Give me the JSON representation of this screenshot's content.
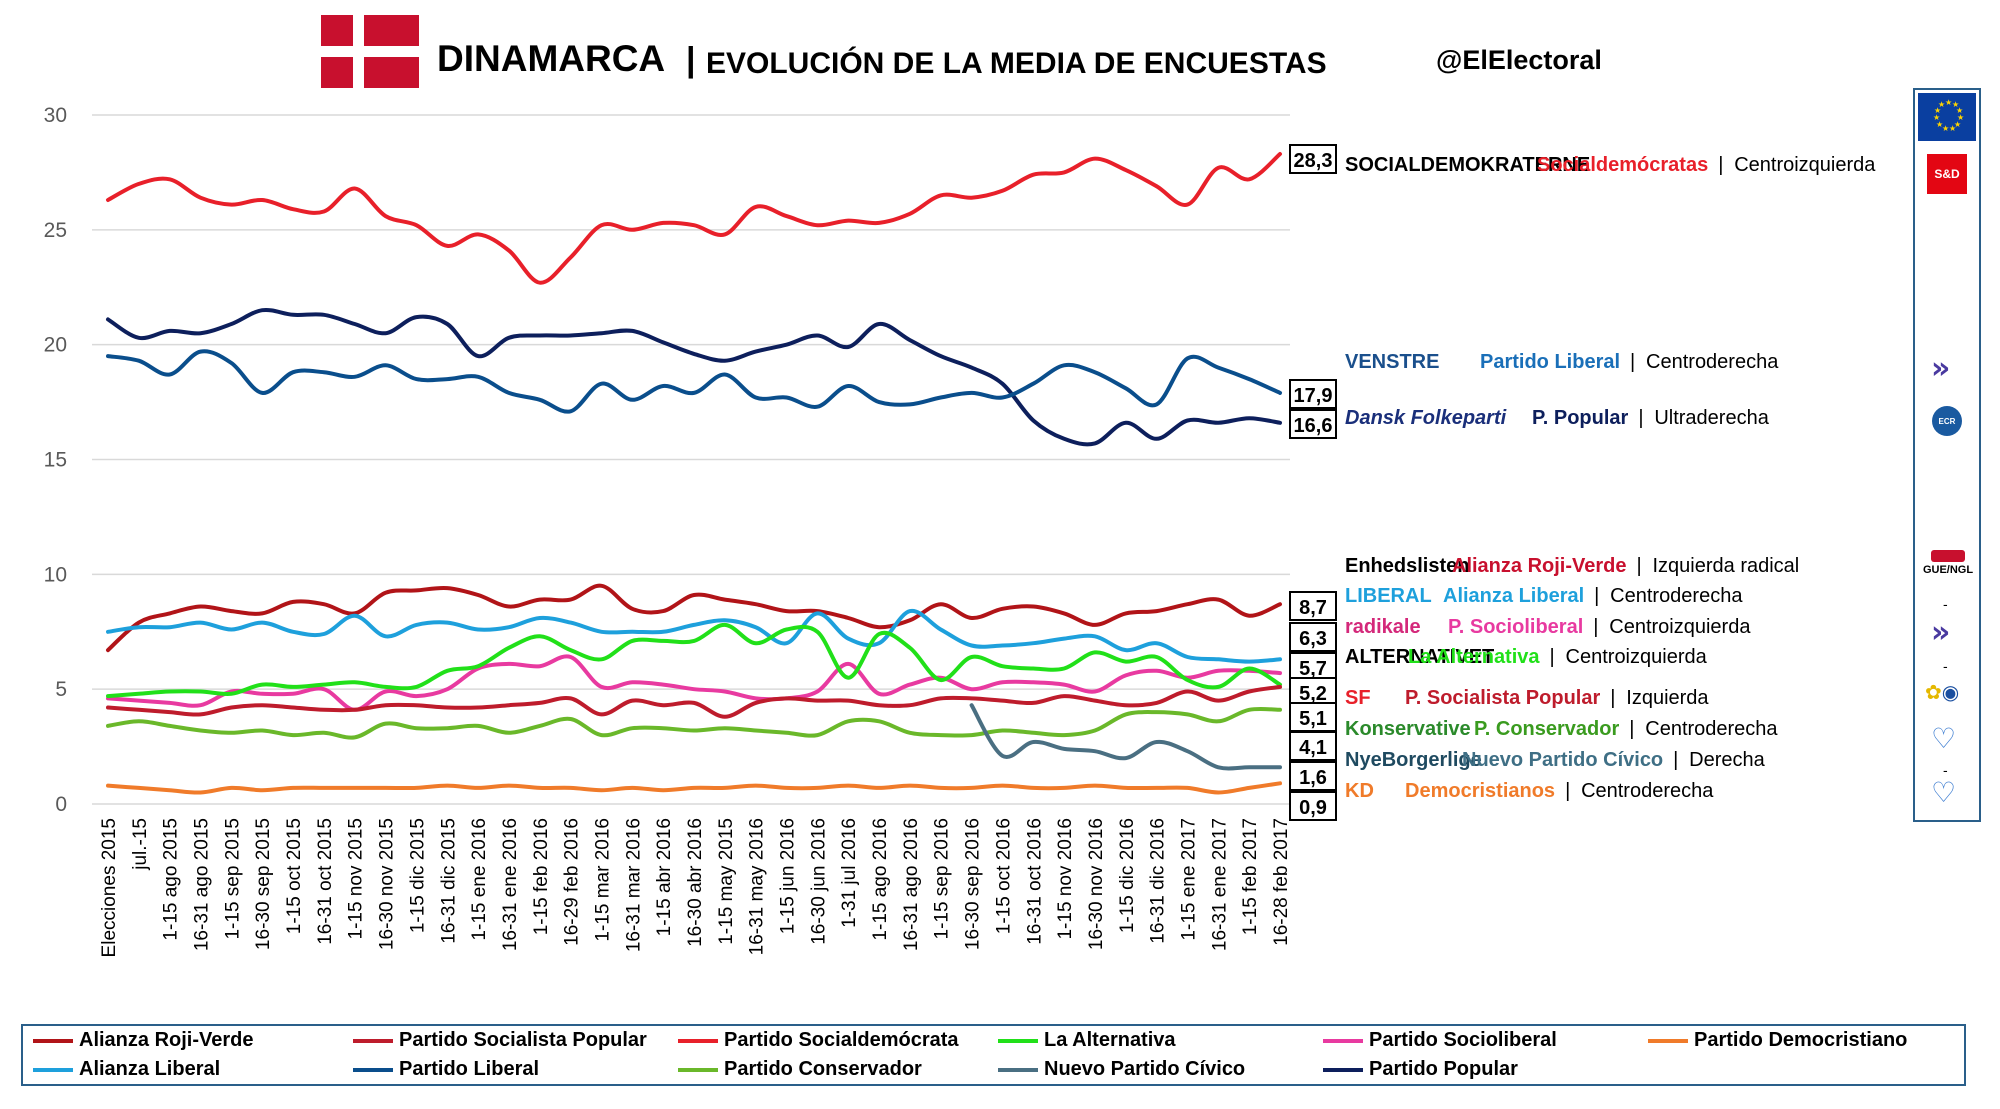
{
  "header": {
    "flag_colors": {
      "red": "#c8102e",
      "white": "#ffffff"
    },
    "title_bold": "DINAMARCA",
    "title_separator": "|",
    "title_rest": "EVOLUCIÓN DE LA MEDIA DE ENCUESTAS",
    "handle": "@ElElectoral"
  },
  "chart_data": {
    "type": "line",
    "ylim": [
      0,
      30
    ],
    "yticks": [
      "30",
      "25",
      "20",
      "15",
      "10",
      "5",
      "0"
    ],
    "ytick_values": [
      30,
      25,
      20,
      15,
      10,
      5,
      0
    ],
    "grid": "horizontal",
    "categories": [
      "Elecciones 2015",
      "jul.-15",
      "1-15 ago 2015",
      "16-31 ago 2015",
      "1-15 sep 2015",
      "16-30 sep 2015",
      "1-15 oct 2015",
      "16-31 oct 2015",
      "1-15 nov 2015",
      "16-30 nov 2015",
      "1-15 dic 2015",
      "16-31 dic 2015",
      "1-15 ene 2016",
      "16-31 ene 2016",
      "1-15 feb 2016",
      "16-29 feb 2016",
      "1-15 mar 2016",
      "16-31 mar 2016",
      "1-15 abr 2016",
      "16-30 abr 2016",
      "1-15 may 2015",
      "16-31 may 2016",
      "1-15 jun 2016",
      "16-30 jun 2016",
      "1-31 jul 2016",
      "1-15 ago 2016",
      "16-31 ago 2016",
      "1-15 sep 2016",
      "16-30 sep 2016",
      "1-15 oct 2016",
      "16-31 oct 2016",
      "1-15 nov 2016",
      "16-30 nov 2016",
      "1-15 dic 2016",
      "16-31 dic 2016",
      "1-15 ene 2017",
      "16-31 ene 2017",
      "1-15 feb 2017",
      "16-28 feb 2017"
    ],
    "series": [
      {
        "name": "Partido Socialdemócrata",
        "color": "#e8202a",
        "values": [
          26.3,
          27.0,
          27.2,
          26.4,
          26.1,
          26.3,
          25.9,
          25.8,
          26.8,
          25.6,
          25.2,
          24.3,
          24.8,
          24.1,
          22.7,
          23.8,
          25.2,
          25.0,
          25.3,
          25.2,
          24.8,
          26.0,
          25.6,
          25.2,
          25.4,
          25.3,
          25.7,
          26.5,
          26.4,
          26.7,
          27.4,
          27.5,
          28.1,
          27.6,
          26.9,
          26.1,
          27.7,
          27.2,
          28.3
        ],
        "end_label": "28,3"
      },
      {
        "name": "Partido Popular",
        "color": "#0d1f5c",
        "values": [
          21.1,
          20.3,
          20.6,
          20.5,
          20.9,
          21.5,
          21.3,
          21.3,
          20.9,
          20.5,
          21.2,
          20.9,
          19.5,
          20.3,
          20.4,
          20.4,
          20.5,
          20.6,
          20.1,
          19.6,
          19.3,
          19.7,
          20.0,
          20.4,
          19.9,
          20.9,
          20.2,
          19.5,
          19.0,
          18.3,
          16.7,
          15.9,
          15.7,
          16.6,
          15.9,
          16.7,
          16.6,
          16.8,
          16.6
        ],
        "end_label": "16,6"
      },
      {
        "name": "Partido Liberal",
        "color": "#0a4e8c",
        "values": [
          19.5,
          19.3,
          18.7,
          19.7,
          19.2,
          17.9,
          18.8,
          18.8,
          18.6,
          19.1,
          18.5,
          18.5,
          18.6,
          17.9,
          17.6,
          17.1,
          18.3,
          17.6,
          18.2,
          17.9,
          18.7,
          17.7,
          17.7,
          17.3,
          18.2,
          17.5,
          17.4,
          17.7,
          17.9,
          17.7,
          18.3,
          19.1,
          18.8,
          18.1,
          17.4,
          19.4,
          19.0,
          18.5,
          17.9
        ],
        "end_label": "17,9"
      },
      {
        "name": "Alianza Roji-Verde",
        "color": "#b11418",
        "values": [
          6.7,
          7.9,
          8.3,
          8.6,
          8.4,
          8.3,
          8.8,
          8.7,
          8.3,
          9.2,
          9.3,
          9.4,
          9.1,
          8.6,
          8.9,
          8.9,
          9.5,
          8.5,
          8.4,
          9.1,
          8.9,
          8.7,
          8.4,
          8.4,
          8.1,
          7.7,
          8.0,
          8.7,
          8.1,
          8.5,
          8.6,
          8.3,
          7.8,
          8.3,
          8.4,
          8.7,
          8.9,
          8.2,
          8.7
        ],
        "end_label": "8,7"
      },
      {
        "name": "Alianza Liberal",
        "color": "#1ea0dc",
        "values": [
          7.5,
          7.7,
          7.7,
          7.9,
          7.6,
          7.9,
          7.5,
          7.4,
          8.2,
          7.3,
          7.8,
          7.9,
          7.6,
          7.7,
          8.1,
          7.9,
          7.5,
          7.5,
          7.5,
          7.8,
          8.0,
          7.7,
          7.0,
          8.3,
          7.2,
          7.0,
          8.4,
          7.6,
          6.9,
          6.9,
          7.0,
          7.2,
          7.3,
          6.7,
          7.0,
          6.4,
          6.3,
          6.2,
          6.3
        ],
        "end_label": "6,3"
      },
      {
        "name": "Partido Socioliberal",
        "color": "#e83aa0",
        "values": [
          4.6,
          4.5,
          4.4,
          4.3,
          4.9,
          4.8,
          4.8,
          5.0,
          4.1,
          4.9,
          4.7,
          5.0,
          5.9,
          6.1,
          6.0,
          6.4,
          5.1,
          5.3,
          5.2,
          5.0,
          4.9,
          4.6,
          4.6,
          4.9,
          6.1,
          4.8,
          5.2,
          5.5,
          5.0,
          5.3,
          5.3,
          5.2,
          4.9,
          5.6,
          5.8,
          5.5,
          5.8,
          5.8,
          5.7
        ],
        "end_label": "5,7"
      },
      {
        "name": "La Alternativa",
        "color": "#21e019",
        "values": [
          4.7,
          4.8,
          4.9,
          4.9,
          4.8,
          5.2,
          5.1,
          5.2,
          5.3,
          5.1,
          5.1,
          5.8,
          6.0,
          6.8,
          7.3,
          6.7,
          6.3,
          7.1,
          7.1,
          7.1,
          7.8,
          7.0,
          7.6,
          7.5,
          5.5,
          7.4,
          6.8,
          5.4,
          6.4,
          6.0,
          5.9,
          5.9,
          6.6,
          6.2,
          6.4,
          5.4,
          5.1,
          5.9,
          5.2
        ],
        "end_label": "5,2"
      },
      {
        "name": "Partido Socialista Popular",
        "color": "#be1c2c",
        "values": [
          4.2,
          4.1,
          4.0,
          3.9,
          4.2,
          4.3,
          4.2,
          4.1,
          4.1,
          4.3,
          4.3,
          4.2,
          4.2,
          4.3,
          4.4,
          4.6,
          3.9,
          4.5,
          4.3,
          4.4,
          3.8,
          4.4,
          4.6,
          4.5,
          4.5,
          4.3,
          4.3,
          4.6,
          4.6,
          4.5,
          4.4,
          4.7,
          4.5,
          4.3,
          4.4,
          4.9,
          4.5,
          4.9,
          5.1
        ],
        "end_label": "5,1"
      },
      {
        "name": "Partido Conservador",
        "color": "#6ab82a",
        "values": [
          3.4,
          3.6,
          3.4,
          3.2,
          3.1,
          3.2,
          3.0,
          3.1,
          2.9,
          3.5,
          3.3,
          3.3,
          3.4,
          3.1,
          3.4,
          3.7,
          3.0,
          3.3,
          3.3,
          3.2,
          3.3,
          3.2,
          3.1,
          3.0,
          3.6,
          3.6,
          3.1,
          3.0,
          3.0,
          3.2,
          3.1,
          3.0,
          3.2,
          3.9,
          4.0,
          3.9,
          3.6,
          4.1,
          4.1
        ],
        "end_label": "4,1"
      },
      {
        "name": "Nuevo Partido Cívico",
        "color": "#4a6f82",
        "values": [
          null,
          null,
          null,
          null,
          null,
          null,
          null,
          null,
          null,
          null,
          null,
          null,
          null,
          null,
          null,
          null,
          null,
          null,
          null,
          null,
          null,
          null,
          null,
          null,
          null,
          null,
          null,
          null,
          4.3,
          2.1,
          2.7,
          2.4,
          2.3,
          2.0,
          2.7,
          2.3,
          1.6,
          1.6,
          1.6
        ],
        "end_label": "1,6"
      },
      {
        "name": "Partido Democristiano",
        "color": "#f07b2a",
        "values": [
          0.8,
          0.7,
          0.6,
          0.5,
          0.7,
          0.6,
          0.7,
          0.7,
          0.7,
          0.7,
          0.7,
          0.8,
          0.7,
          0.8,
          0.7,
          0.7,
          0.6,
          0.7,
          0.6,
          0.7,
          0.7,
          0.8,
          0.7,
          0.7,
          0.8,
          0.7,
          0.8,
          0.7,
          0.7,
          0.8,
          0.7,
          0.7,
          0.8,
          0.7,
          0.7,
          0.7,
          0.5,
          0.7,
          0.9
        ],
        "end_label": "0,9"
      }
    ]
  },
  "party_labels": [
    {
      "logo": "SOCIALDEMOKRATERNE",
      "logo_color": "#000000",
      "name": "Socialdemócratas",
      "name_color": "#e8202a",
      "ideology": "Centroizquierda"
    },
    {
      "logo": "VENSTRE",
      "logo_color": "#1a4f8c",
      "name": "Partido Liberal",
      "name_color": "#1a6fb8",
      "ideology": "Centroderecha"
    },
    {
      "logo": "Dansk Folkeparti",
      "logo_color": "#1a2f7a",
      "name": "P. Popular",
      "name_color": "#0d1f5c",
      "ideology": "Ultraderecha"
    },
    {
      "logo": "Enhedslisten",
      "logo_color": "#000000",
      "name": "Alianza Roji-Verde",
      "name_color": "#c8102e",
      "ideology": "Izquierda radical"
    },
    {
      "logo": "LIBERAL",
      "logo_color": "#1ea0dc",
      "name": "Alianza Liberal",
      "name_color": "#1ea0dc",
      "ideology": "Centroderecha"
    },
    {
      "logo": "radikale",
      "logo_color": "#d4287a",
      "name": "P. Socioliberal",
      "name_color": "#e83aa0",
      "ideology": "Centroizquierda"
    },
    {
      "logo": "ALTERNATIVET",
      "logo_color": "#000000",
      "name": "La Alternativa",
      "name_color": "#21e019",
      "ideology": "Centroizquierda"
    },
    {
      "logo": "SF",
      "logo_color": "#e8202a",
      "name": "P. Socialista Popular",
      "name_color": "#be1c2c",
      "ideology": "Izquierda"
    },
    {
      "logo": "Konservative",
      "logo_color": "#2b8a2b",
      "name": "P. Conservador",
      "name_color": "#3a9b1f",
      "ideology": "Centroderecha"
    },
    {
      "logo": "NyeBorgerlige",
      "logo_color": "#1f4a60",
      "name": "Nuevo Partido Cívico",
      "name_color": "#3f6f85",
      "ideology": "Derecha"
    },
    {
      "logo": "KD",
      "logo_color": "#f07b2a",
      "name": "Democristianos",
      "name_color": "#f07b2a",
      "ideology": "Centroderecha"
    }
  ],
  "eu_panel": {
    "sd": "S&D",
    "gue": "GUE/NGL",
    "dash": "-"
  },
  "legend": [
    {
      "label": "Alianza Roji-Verde",
      "color": "#b11418"
    },
    {
      "label": "Partido Socialista Popular",
      "color": "#be1c2c"
    },
    {
      "label": "Partido Socialdemócrata",
      "color": "#e8202a"
    },
    {
      "label": "La Alternativa",
      "color": "#21e019"
    },
    {
      "label": "Partido Socioliberal",
      "color": "#e83aa0"
    },
    {
      "label": "Partido Democristiano",
      "color": "#f07b2a"
    },
    {
      "label": "Alianza Liberal",
      "color": "#1ea0dc"
    },
    {
      "label": "Partido Liberal",
      "color": "#0a4e8c"
    },
    {
      "label": "Partido Conservador",
      "color": "#6ab82a"
    },
    {
      "label": "Nuevo Partido Cívico",
      "color": "#4a6f82"
    },
    {
      "label": "Partido Popular",
      "color": "#0d1f5c"
    }
  ]
}
